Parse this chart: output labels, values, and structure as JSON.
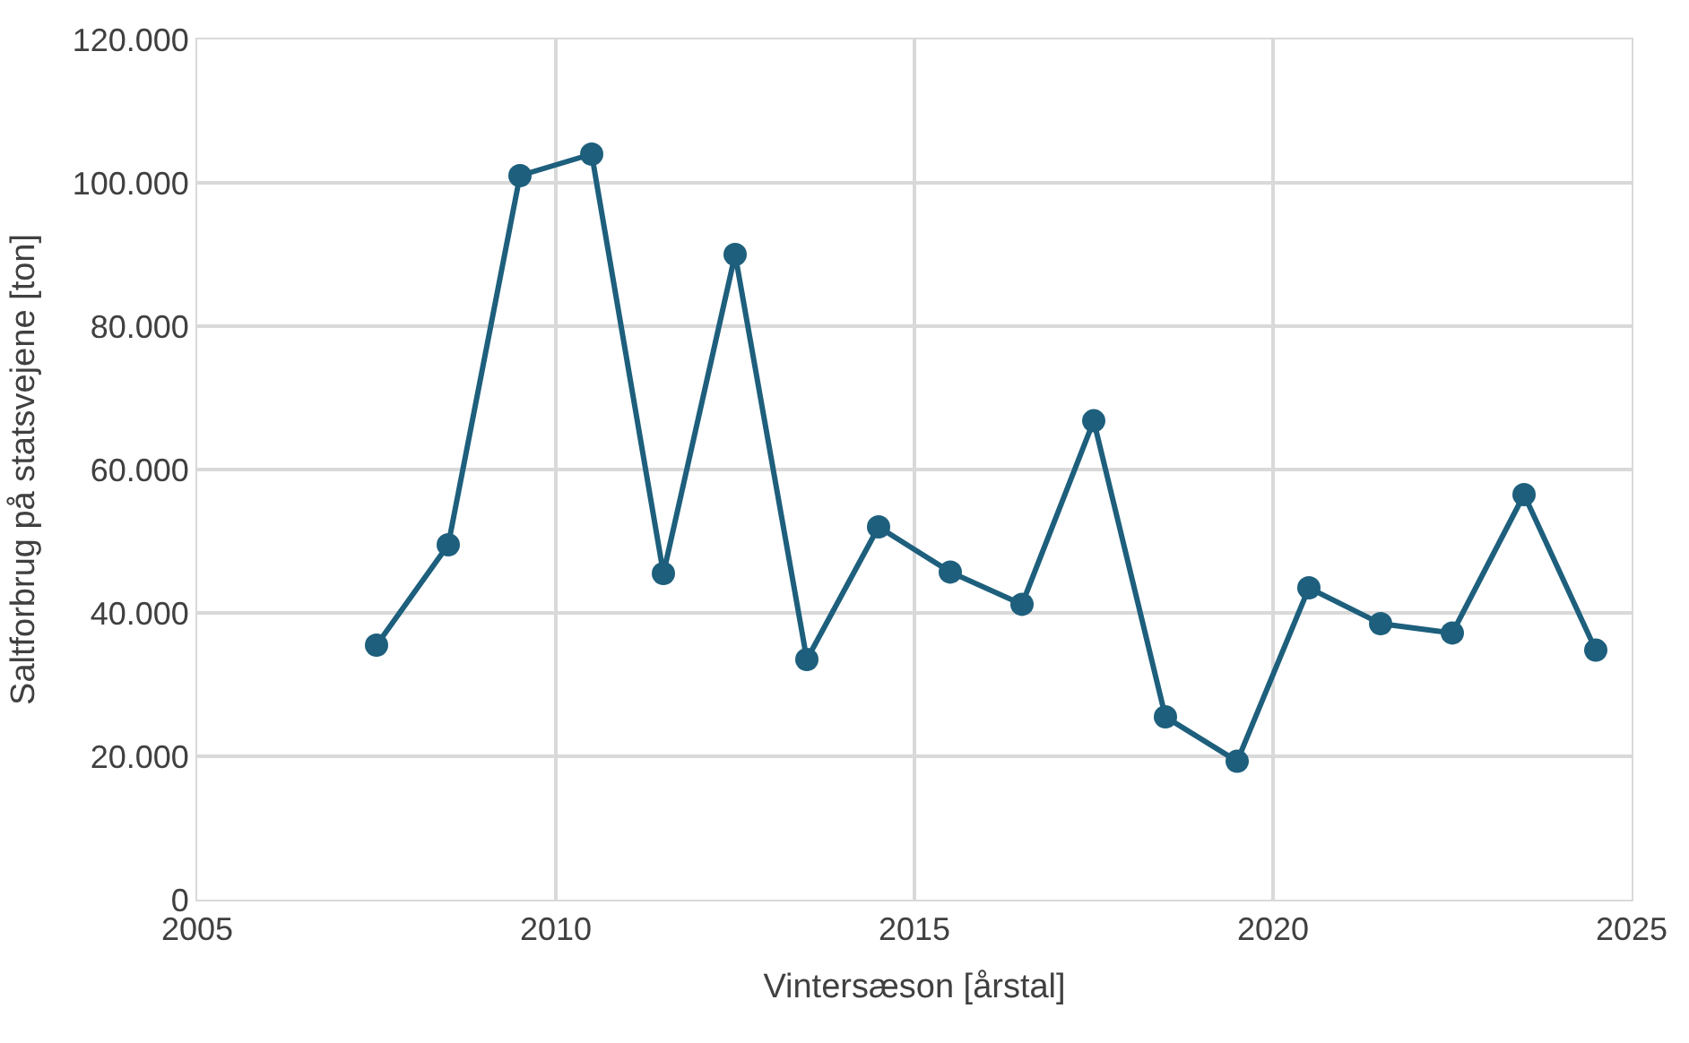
{
  "chart_data": {
    "type": "line",
    "xlabel": "Vintersæson [årstal]",
    "ylabel": "Saltforbrug på statsvejene [ton]",
    "x": [
      2007.5,
      2008.5,
      2009.5,
      2010.5,
      2011.5,
      2012.5,
      2013.5,
      2014.5,
      2015.5,
      2016.5,
      2017.5,
      2018.5,
      2019.5,
      2020.5,
      2021.5,
      2022.5,
      2023.5,
      2024.5
    ],
    "series": [
      {
        "color": "#1d5f7c",
        "values": [
          35500,
          49500,
          101000,
          104000,
          45500,
          90000,
          33500,
          52000,
          45700,
          41200,
          66800,
          25500,
          19300,
          43500,
          38500,
          37200,
          56500,
          34800
        ]
      }
    ],
    "xlim": [
      2005,
      2025
    ],
    "xticks": [
      2005,
      2010,
      2015,
      2020,
      2025
    ],
    "ylim": [
      0,
      120000
    ],
    "yticks": [
      0,
      {
        "value": 20000,
        "label": "20.000"
      },
      {
        "value": 40000,
        "label": "40.000"
      },
      {
        "value": 60000,
        "label": "60.000"
      },
      {
        "value": 80000,
        "label": "80.000"
      },
      {
        "value": 100000,
        "label": "100.000"
      },
      {
        "value": 120000,
        "label": "120.000"
      }
    ],
    "grid": true,
    "marker": "circle",
    "line_style": "solid",
    "legend": false
  }
}
